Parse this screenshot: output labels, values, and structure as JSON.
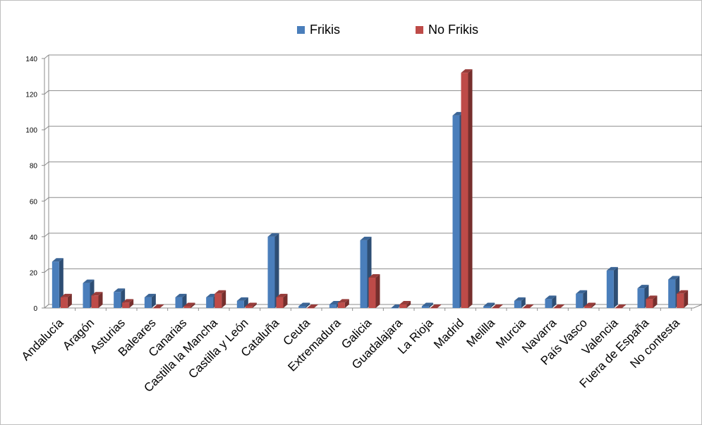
{
  "chart_data": {
    "type": "bar",
    "title": "",
    "xlabel": "",
    "ylabel": "",
    "ylim": [
      0,
      140
    ],
    "yticks": [
      0,
      20,
      40,
      60,
      80,
      100,
      120,
      140
    ],
    "grid": true,
    "legend_position": "top",
    "categories": [
      "Andalucía",
      "Aragón",
      "Asturias",
      "Baleares",
      "Canarias",
      "Castilla la Mancha",
      "Castilla y León",
      "Cataluña",
      "Ceuta",
      "Extremadura",
      "Galicia",
      "Guadalajara",
      "La Rioja",
      "Madrid",
      "Melilla",
      "Murcia",
      "Navarra",
      "País Vasco",
      "Valencia",
      "Fuera de España",
      "No contesta"
    ],
    "series": [
      {
        "name": "Frikis",
        "color": "#4a7ebb",
        "values": [
          26,
          14,
          9,
          6,
          6,
          6,
          4,
          40,
          1,
          2,
          38,
          0,
          1,
          108,
          1,
          4,
          5,
          8,
          21,
          11,
          16
        ]
      },
      {
        "name": "No Frikis",
        "color": "#be4b48",
        "values": [
          6,
          7,
          3,
          0,
          1,
          8,
          1,
          6,
          0,
          3,
          17,
          2,
          0,
          132,
          0,
          0,
          0,
          1,
          0,
          5,
          8
        ]
      }
    ]
  }
}
